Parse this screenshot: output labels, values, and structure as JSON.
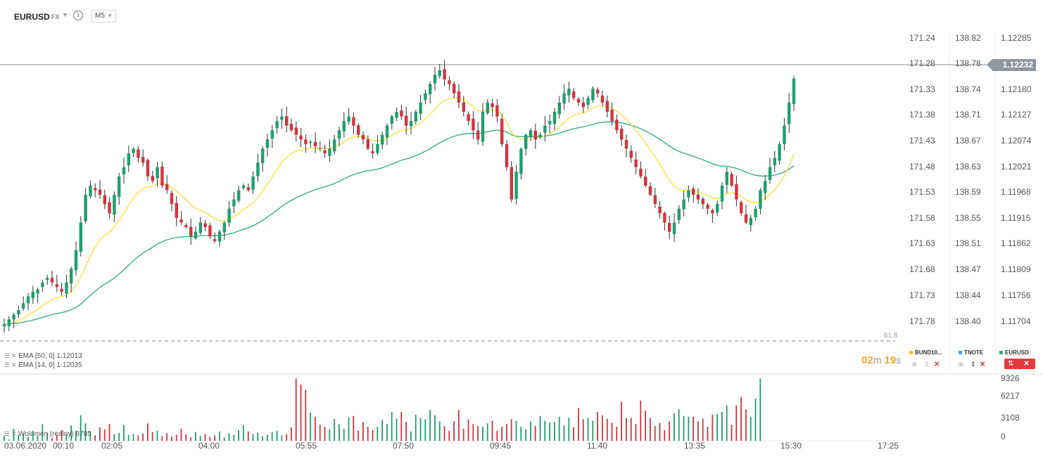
{
  "header": {
    "symbol": "EURUSD",
    "market": "FX",
    "timeframe": "M5"
  },
  "indicators": [
    {
      "label": "EMA [50, 0] 1.12013",
      "color": "#2dab7a"
    },
    {
      "label": "EMA [14, 0] 1.12035",
      "color": "#f5e23e"
    }
  ],
  "volume_indicator": {
    "label": "Wolumen (realny) 8785"
  },
  "fib_label": "61.8",
  "countdown": {
    "minutes": "02",
    "m_unit": "m",
    "seconds": "19",
    "s_unit": "s"
  },
  "current_price": "1.12232",
  "legend": [
    {
      "name": "BUND10...",
      "color": "#f5c518"
    },
    {
      "name": "TNOTE",
      "color": "#4aa8e8"
    },
    {
      "name": "EURUSD",
      "color": "#2dab7a"
    }
  ],
  "colors": {
    "up": "#1e9e6e",
    "down": "#d3343f",
    "ema50": "#2dab7a",
    "ema14": "#f5e23e",
    "countdown": "#f2a62a"
  },
  "chart_data": {
    "type": "candlestick",
    "x_ticks": [
      "03.06.2020",
      "00:10",
      "02:05",
      "04:00",
      "05:55",
      "07:50",
      "09:45",
      "11:40",
      "13:35",
      "15:30",
      "17:25"
    ],
    "y_axis_eurusd": [
      "1.12285",
      "1.12180",
      "1.12127",
      "1.12074",
      "1.12021",
      "1.11968",
      "1.11915",
      "1.11862",
      "1.11809",
      "1.11756",
      "1.11704"
    ],
    "y_axis_tnote": [
      "138.82",
      "138.78",
      "138.74",
      "138.71",
      "138.67",
      "138.63",
      "138.59",
      "138.55",
      "138.51",
      "138.47",
      "138.44",
      "138.40"
    ],
    "y_axis_bund": [
      "171.24",
      "171.28",
      "171.33",
      "171.38",
      "171.43",
      "171.48",
      "171.53",
      "171.58",
      "171.63",
      "171.68",
      "171.73",
      "171.78"
    ],
    "volume_axis": [
      "9326",
      "6217",
      "3108",
      "0"
    ],
    "ylim": [
      1.1168,
      1.1232
    ],
    "last_price": 1.12232,
    "closes": [
      1.117,
      1.1171,
      1.1172,
      1.1173,
      1.11745,
      1.1176,
      1.1177,
      1.11775,
      1.1179,
      1.118,
      1.1179,
      1.1178,
      1.1177,
      1.1179,
      1.1182,
      1.1186,
      1.1192,
      1.1198,
      1.12,
      1.1199,
      1.1198,
      1.1196,
      1.1194,
      1.1198,
      1.1202,
      1.1204,
      1.1207,
      1.1208,
      1.1206,
      1.1205,
      1.1202,
      1.1201,
      1.1204,
      1.12,
      1.1199,
      1.1196,
      1.1193,
      1.1192,
      1.1191,
      1.1189,
      1.119,
      1.1192,
      1.1191,
      1.1189,
      1.1188,
      1.119,
      1.1192,
      1.1195,
      1.1197,
      1.1199,
      1.12,
      1.1199,
      1.1202,
      1.1205,
      1.1208,
      1.121,
      1.1212,
      1.1214,
      1.1215,
      1.1213,
      1.1212,
      1.1211,
      1.121,
      1.1209,
      1.12095,
      1.12085,
      1.1208,
      1.1207,
      1.1208,
      1.121,
      1.1212,
      1.1214,
      1.1215,
      1.1213,
      1.1211,
      1.121,
      1.1208,
      1.1207,
      1.1209,
      1.1211,
      1.1213,
      1.1215,
      1.1216,
      1.1215,
      1.1213,
      1.1214,
      1.1216,
      1.1218,
      1.122,
      1.1222,
      1.1224,
      1.1225,
      1.1223,
      1.1222,
      1.122,
      1.1218,
      1.1216,
      1.1214,
      1.1212,
      1.121,
      1.1216,
      1.1218,
      1.1217,
      1.1215,
      1.1209,
      1.1204,
      1.1197,
      1.1203,
      1.1208,
      1.1211,
      1.1212,
      1.121,
      1.1211,
      1.1213,
      1.1214,
      1.1216,
      1.1218,
      1.122,
      1.1221,
      1.1219,
      1.1218,
      1.1217,
      1.1219,
      1.1221,
      1.122,
      1.1218,
      1.1216,
      1.1214,
      1.1212,
      1.121,
      1.1208,
      1.1206,
      1.1204,
      1.1202,
      1.12,
      1.1198,
      1.1196,
      1.1194,
      1.1192,
      1.119,
      1.1192,
      1.1195,
      1.1197,
      1.1199,
      1.1198,
      1.1197,
      1.1196,
      1.1195,
      1.1194,
      1.1196,
      1.12,
      1.1203,
      1.12,
      1.1197,
      1.1194,
      1.1192,
      1.1193,
      1.1195,
      1.1199,
      1.1201,
      1.1204,
      1.1206,
      1.1209,
      1.1213,
      1.1218,
      1.12232
    ],
    "volumes": [
      700,
      200,
      1800,
      900,
      1100,
      600,
      1500,
      800,
      2500,
      1200,
      400,
      900,
      1600,
      1000,
      2300,
      1500,
      3800,
      2600,
      1400,
      800,
      2000,
      1700,
      2500,
      1000,
      1200,
      2400,
      900,
      1000,
      800,
      1100,
      2600,
      1300,
      1500,
      700,
      1100,
      600,
      900,
      1800,
      1000,
      500,
      1300,
      700,
      1000,
      600,
      800,
      1400,
      500,
      1100,
      900,
      1600,
      2300,
      1400,
      1000,
      1200,
      700,
      900,
      1300,
      1500,
      800,
      1000,
      2000,
      9300,
      8400,
      7600,
      4200,
      3600,
      2400,
      2100,
      1700,
      3300,
      2500,
      1800,
      3500,
      3700,
      1500,
      2800,
      2100,
      1600,
      2100,
      3100,
      2500,
      4300,
      3300,
      4300,
      2800,
      1400,
      3900,
      3400,
      3200,
      4600,
      3800,
      2900,
      2200,
      1500,
      2900,
      4600,
      1800,
      3200,
      2500,
      2200,
      2100,
      2600,
      3000,
      1500,
      2100,
      2500,
      3200,
      3000,
      2100,
      1700,
      2900,
      2200,
      3700,
      3000,
      2700,
      2800,
      3600,
      2300,
      3400,
      2000,
      4900,
      3200,
      3400,
      3000,
      4300,
      3800,
      3300,
      2700,
      2100,
      5800,
      3400,
      3400,
      2500,
      6000,
      4500,
      3400,
      2200,
      2700,
      1600,
      2900,
      4100,
      4700,
      3700,
      3600,
      3600,
      2900,
      3300,
      2100,
      3900,
      4000,
      4300,
      5300,
      2400,
      5300,
      6500,
      4700,
      3600,
      6300,
      9300
    ]
  }
}
